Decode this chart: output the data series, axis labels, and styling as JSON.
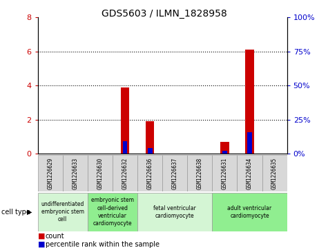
{
  "title": "GDS5603 / ILMN_1828958",
  "samples": [
    "GSM1226629",
    "GSM1226633",
    "GSM1226630",
    "GSM1226632",
    "GSM1226636",
    "GSM1226637",
    "GSM1226638",
    "GSM1226631",
    "GSM1226634",
    "GSM1226635"
  ],
  "count_values": [
    0,
    0,
    0,
    3.9,
    1.9,
    0,
    0,
    0.7,
    6.1,
    0
  ],
  "percentile_values": [
    0,
    0,
    0,
    9,
    4.0,
    0,
    0,
    2.0,
    16.0,
    0
  ],
  "ylim_left": [
    0,
    8
  ],
  "ylim_right": [
    0,
    100
  ],
  "yticks_left": [
    0,
    2,
    4,
    6,
    8
  ],
  "yticks_right": [
    0,
    25,
    50,
    75,
    100
  ],
  "cell_type_groups": [
    {
      "label": "undifferentiated\nembryonic stem\ncell",
      "start": 0,
      "end": 2,
      "color": "#d4f5d4"
    },
    {
      "label": "embryonic stem\ncell-derived\nventricular\ncardiomyocyte",
      "start": 2,
      "end": 4,
      "color": "#90ee90"
    },
    {
      "label": "fetal ventricular\ncardiomyocyte",
      "start": 4,
      "end": 7,
      "color": "#d4f5d4"
    },
    {
      "label": "adult ventricular\ncardiomyocyte",
      "start": 7,
      "end": 10,
      "color": "#90ee90"
    }
  ],
  "bar_color_red": "#cc0000",
  "bar_color_blue": "#0000cc",
  "bar_width": 0.35,
  "tick_label_color_left": "#cc0000",
  "tick_label_color_right": "#0000cc",
  "cell_type_label": "cell type",
  "legend_count_label": "count",
  "legend_percentile_label": "percentile rank within the sample",
  "grid_color": "black",
  "sample_box_color": "#d8d8d8",
  "plot_bg": "#ffffff",
  "spine_color": "#000000"
}
